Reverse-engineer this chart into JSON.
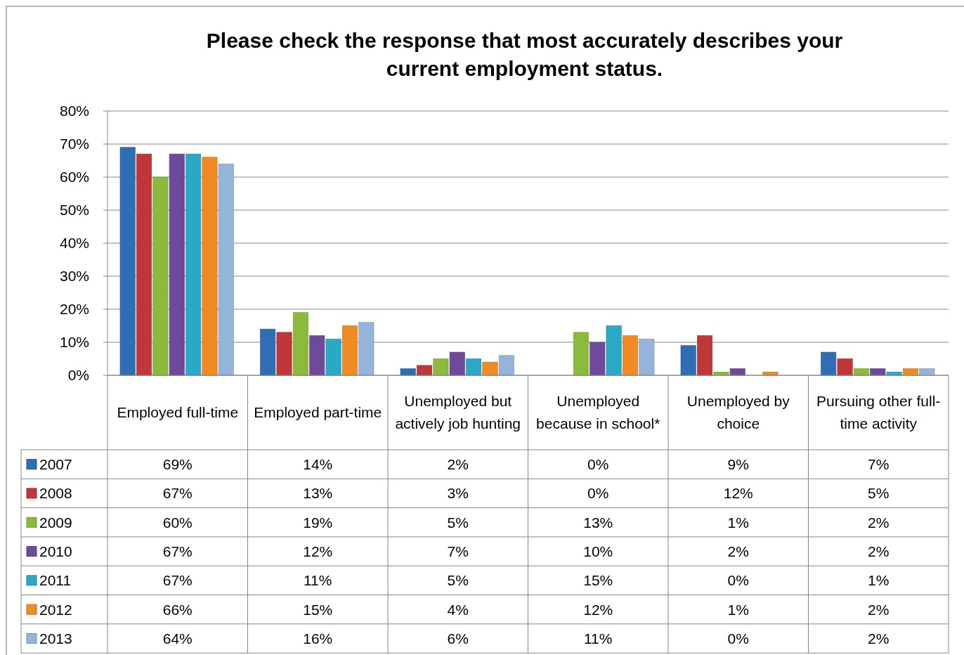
{
  "chart_data": {
    "type": "bar",
    "title": "Please check the response that most accurately describes your current employment status.",
    "categories": [
      "Employed full-time",
      "Employed part-time",
      "Unemployed but actively job hunting",
      "Unemployed because in school*",
      "Unemployed by choice",
      "Pursuing other full-time activity"
    ],
    "series": [
      {
        "name": "2007",
        "color": "#2f6db5",
        "values": [
          69,
          14,
          2,
          0,
          9,
          7
        ],
        "value_labels": [
          "69%",
          "14%",
          "2%",
          "0%",
          "9%",
          "7%"
        ]
      },
      {
        "name": "2008",
        "color": "#c0373a",
        "values": [
          67,
          13,
          3,
          0,
          12,
          5
        ],
        "value_labels": [
          "67%",
          "13%",
          "3%",
          "0%",
          "12%",
          "5%"
        ]
      },
      {
        "name": "2009",
        "color": "#8cba3c",
        "values": [
          60,
          19,
          5,
          13,
          1,
          2
        ],
        "value_labels": [
          "60%",
          "19%",
          "5%",
          "13%",
          "1%",
          "2%"
        ]
      },
      {
        "name": "2010",
        "color": "#6e4a9c",
        "values": [
          67,
          12,
          7,
          10,
          2,
          2
        ],
        "value_labels": [
          "67%",
          "12%",
          "7%",
          "10%",
          "2%",
          "2%"
        ]
      },
      {
        "name": "2011",
        "color": "#2aa9c6",
        "values": [
          67,
          11,
          5,
          15,
          0,
          1
        ],
        "value_labels": [
          "67%",
          "11%",
          "5%",
          "15%",
          "0%",
          "1%"
        ]
      },
      {
        "name": "2012",
        "color": "#f28a24",
        "values": [
          66,
          15,
          4,
          12,
          1,
          2
        ],
        "value_labels": [
          "66%",
          "15%",
          "4%",
          "12%",
          "1%",
          "2%"
        ]
      },
      {
        "name": "2013",
        "color": "#94b4da",
        "values": [
          64,
          16,
          6,
          11,
          0,
          2
        ],
        "value_labels": [
          "64%",
          "16%",
          "6%",
          "11%",
          "0%",
          "2%"
        ]
      }
    ],
    "ylim": [
      0,
      80
    ],
    "yticks": [
      {
        "value": 0,
        "label": "0%"
      },
      {
        "value": 10,
        "label": "10%"
      },
      {
        "value": 20,
        "label": "20%"
      },
      {
        "value": 30,
        "label": "30%"
      },
      {
        "value": 40,
        "label": "40%"
      },
      {
        "value": 50,
        "label": "50%"
      },
      {
        "value": 60,
        "label": "60%"
      },
      {
        "value": 70,
        "label": "70%"
      },
      {
        "value": 80,
        "label": "80%"
      }
    ],
    "grid": "y",
    "legend": "bottom"
  }
}
